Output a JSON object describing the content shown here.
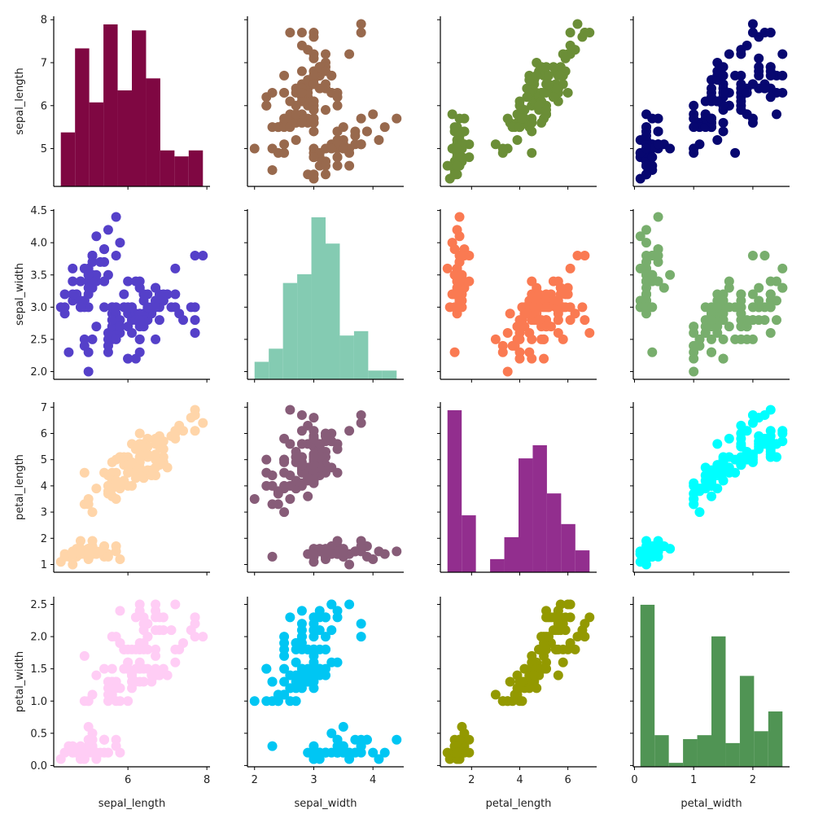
{
  "chart_data": {
    "type": "scatter",
    "title": "",
    "layout": "pairplot 4x4 (diagonal histograms, off-diagonal scatter)",
    "variables": [
      "sepal_length",
      "sepal_width",
      "petal_length",
      "petal_width"
    ],
    "axis_ranges": {
      "sepal_length": [
        4.12,
        8.08
      ],
      "sepal_width": [
        1.88,
        4.52
      ],
      "petal_length": [
        0.705,
        7.195
      ],
      "petal_width": [
        -0.02,
        2.62
      ]
    },
    "ticks": {
      "sepal_length": {
        "x": [
          "6",
          "8"
        ],
        "y": [
          "5",
          "6",
          "7",
          "8"
        ]
      },
      "sepal_width": {
        "x": [
          "2",
          "3",
          "4"
        ],
        "y": [
          "2.0",
          "2.5",
          "3.0",
          "3.5",
          "4.0",
          "4.5"
        ]
      },
      "petal_length": {
        "x": [
          "2",
          "4",
          "6"
        ],
        "y": [
          "1",
          "2",
          "3",
          "4",
          "5",
          "6",
          "7"
        ]
      },
      "petal_width": {
        "x": [
          "0",
          "1",
          "2"
        ],
        "y": [
          "0.0",
          "0.5",
          "1.0",
          "1.5",
          "2.0",
          "2.5"
        ]
      }
    },
    "grid": false,
    "legend": "none",
    "histograms": {
      "sepal_length": {
        "bins": 10,
        "range": [
          4.3,
          7.9
        ],
        "counts": [
          9,
          23,
          14,
          27,
          16,
          26,
          18,
          6,
          5,
          6
        ]
      },
      "sepal_width": {
        "bins": 10,
        "range": [
          2.0,
          4.4
        ],
        "counts": [
          4,
          7,
          22,
          24,
          37,
          31,
          10,
          11,
          2,
          2
        ]
      },
      "petal_length": {
        "bins": 10,
        "range": [
          1.0,
          6.9
        ],
        "counts": [
          37,
          13,
          0,
          3,
          8,
          26,
          29,
          18,
          11,
          5
        ]
      },
      "petal_width": {
        "bins": 10,
        "range": [
          0.1,
          2.5
        ],
        "counts": [
          41,
          8,
          1,
          7,
          8,
          33,
          6,
          23,
          9,
          14
        ]
      }
    },
    "panel_colors": [
      [
        "#7f0742",
        "#98694d",
        "#6b8e37",
        "#070770"
      ],
      [
        "#5540c9",
        "#84cbb2",
        "#fa7a52",
        "#78ae6d"
      ],
      [
        "#ffd5a9",
        "#875c78",
        "#922e8e",
        "#00ffff"
      ],
      [
        "#ffcdf5",
        "#00c6f3",
        "#939900",
        "#509454"
      ]
    ],
    "data": {
      "sepal_length": [
        5.1,
        4.9,
        4.7,
        4.6,
        5.0,
        5.4,
        4.6,
        5.0,
        4.4,
        4.9,
        5.4,
        4.8,
        4.8,
        4.3,
        5.8,
        5.7,
        5.4,
        5.1,
        5.7,
        5.1,
        5.4,
        5.1,
        4.6,
        5.1,
        4.8,
        5.0,
        5.0,
        5.2,
        5.2,
        4.7,
        4.8,
        5.4,
        5.2,
        5.5,
        4.9,
        5.0,
        5.5,
        4.9,
        4.4,
        5.1,
        5.0,
        4.5,
        4.4,
        5.0,
        5.1,
        4.8,
        5.1,
        4.6,
        5.3,
        5.0,
        7.0,
        6.4,
        6.9,
        5.5,
        6.5,
        5.7,
        6.3,
        4.9,
        6.6,
        5.2,
        5.0,
        5.9,
        6.0,
        6.1,
        5.6,
        6.7,
        5.6,
        5.8,
        6.2,
        5.6,
        5.9,
        6.1,
        6.3,
        6.1,
        6.4,
        6.6,
        6.8,
        6.7,
        6.0,
        5.7,
        5.5,
        5.5,
        5.8,
        6.0,
        5.4,
        6.0,
        6.7,
        6.3,
        5.6,
        5.5,
        5.5,
        6.1,
        5.8,
        5.0,
        5.6,
        5.7,
        5.7,
        6.2,
        5.1,
        5.7,
        6.3,
        5.8,
        7.1,
        6.3,
        6.5,
        7.6,
        4.9,
        7.3,
        6.7,
        7.2,
        6.5,
        6.4,
        6.8,
        5.7,
        5.8,
        6.4,
        6.5,
        7.7,
        7.7,
        6.0,
        6.9,
        5.6,
        7.7,
        6.3,
        6.7,
        7.2,
        6.2,
        6.1,
        6.4,
        7.2,
        7.4,
        7.9,
        6.4,
        6.3,
        6.1,
        7.7,
        6.3,
        6.4,
        6.0,
        6.9,
        6.7,
        6.9,
        5.8,
        6.8,
        6.7,
        6.7,
        6.3,
        6.5,
        6.2,
        5.9
      ],
      "sepal_width": [
        3.5,
        3.0,
        3.2,
        3.1,
        3.6,
        3.9,
        3.4,
        3.4,
        2.9,
        3.1,
        3.7,
        3.4,
        3.0,
        3.0,
        4.0,
        4.4,
        3.9,
        3.5,
        3.8,
        3.8,
        3.4,
        3.7,
        3.6,
        3.3,
        3.4,
        3.0,
        3.4,
        3.5,
        3.4,
        3.2,
        3.1,
        3.4,
        4.1,
        4.2,
        3.1,
        3.2,
        3.5,
        3.6,
        3.0,
        3.4,
        3.5,
        2.3,
        3.2,
        3.5,
        3.8,
        3.0,
        3.8,
        3.2,
        3.7,
        3.3,
        3.2,
        3.2,
        3.1,
        2.3,
        2.8,
        2.8,
        3.3,
        2.4,
        2.9,
        2.7,
        2.0,
        3.0,
        2.2,
        2.9,
        2.9,
        3.1,
        3.0,
        2.7,
        2.2,
        2.5,
        3.2,
        2.8,
        2.5,
        2.8,
        2.9,
        3.0,
        2.8,
        3.0,
        2.9,
        2.6,
        2.4,
        2.4,
        2.7,
        2.7,
        3.0,
        3.4,
        3.1,
        2.3,
        3.0,
        2.5,
        2.6,
        3.0,
        2.6,
        2.3,
        2.7,
        3.0,
        2.9,
        2.9,
        2.5,
        2.8,
        3.3,
        2.7,
        3.0,
        2.9,
        3.0,
        3.0,
        2.5,
        2.9,
        2.5,
        3.6,
        3.2,
        2.7,
        3.0,
        2.5,
        2.8,
        3.2,
        3.0,
        3.8,
        2.6,
        2.2,
        3.2,
        2.8,
        2.8,
        2.7,
        3.3,
        3.2,
        2.8,
        3.0,
        2.8,
        3.0,
        2.8,
        3.8,
        2.8,
        2.8,
        2.6,
        3.0,
        3.4,
        3.1,
        3.0,
        3.1,
        3.1,
        3.1,
        2.7,
        3.2,
        3.3,
        3.0,
        2.5,
        3.0,
        3.4,
        3.0
      ],
      "petal_length": [
        1.4,
        1.4,
        1.3,
        1.5,
        1.4,
        1.7,
        1.4,
        1.5,
        1.4,
        1.5,
        1.5,
        1.6,
        1.4,
        1.1,
        1.2,
        1.5,
        1.3,
        1.4,
        1.7,
        1.5,
        1.7,
        1.5,
        1.0,
        1.7,
        1.9,
        1.6,
        1.6,
        1.5,
        1.4,
        1.6,
        1.6,
        1.5,
        1.5,
        1.4,
        1.5,
        1.2,
        1.3,
        1.4,
        1.3,
        1.5,
        1.3,
        1.3,
        1.3,
        1.6,
        1.9,
        1.4,
        1.6,
        1.4,
        1.5,
        1.4,
        4.7,
        4.5,
        4.9,
        4.0,
        4.6,
        4.5,
        4.7,
        3.3,
        4.6,
        3.9,
        3.5,
        4.2,
        4.0,
        4.7,
        3.6,
        4.4,
        4.5,
        4.1,
        4.5,
        3.9,
        4.8,
        4.0,
        4.9,
        4.7,
        4.3,
        4.4,
        4.8,
        5.0,
        4.5,
        3.5,
        3.8,
        3.7,
        3.9,
        5.1,
        4.5,
        4.5,
        4.7,
        4.4,
        4.1,
        4.0,
        4.4,
        4.6,
        4.0,
        3.3,
        4.2,
        4.2,
        4.2,
        4.3,
        3.0,
        4.1,
        6.0,
        5.1,
        5.9,
        5.6,
        5.8,
        6.6,
        4.5,
        6.3,
        5.8,
        6.1,
        5.1,
        5.3,
        5.5,
        5.0,
        5.1,
        5.3,
        5.5,
        6.7,
        6.9,
        5.0,
        5.7,
        4.9,
        6.7,
        4.9,
        5.7,
        6.0,
        4.8,
        4.9,
        5.6,
        5.8,
        6.1,
        6.4,
        5.6,
        5.1,
        5.6,
        6.1,
        5.6,
        5.5,
        4.8,
        5.4,
        5.6,
        5.1,
        5.1,
        5.9,
        5.7,
        5.2,
        5.0,
        5.2,
        5.4,
        5.1
      ],
      "petal_width": [
        0.2,
        0.2,
        0.2,
        0.2,
        0.2,
        0.4,
        0.3,
        0.2,
        0.2,
        0.1,
        0.2,
        0.2,
        0.1,
        0.1,
        0.2,
        0.4,
        0.4,
        0.3,
        0.3,
        0.3,
        0.2,
        0.4,
        0.2,
        0.5,
        0.2,
        0.2,
        0.4,
        0.2,
        0.2,
        0.2,
        0.2,
        0.4,
        0.1,
        0.2,
        0.2,
        0.2,
        0.2,
        0.1,
        0.2,
        0.2,
        0.3,
        0.3,
        0.2,
        0.6,
        0.4,
        0.3,
        0.2,
        0.2,
        0.2,
        0.2,
        1.4,
        1.5,
        1.5,
        1.3,
        1.5,
        1.3,
        1.6,
        1.0,
        1.3,
        1.4,
        1.0,
        1.5,
        1.0,
        1.4,
        1.3,
        1.4,
        1.5,
        1.0,
        1.5,
        1.1,
        1.8,
        1.3,
        1.5,
        1.2,
        1.3,
        1.4,
        1.4,
        1.7,
        1.5,
        1.0,
        1.1,
        1.0,
        1.2,
        1.6,
        1.5,
        1.6,
        1.5,
        1.3,
        1.3,
        1.3,
        1.2,
        1.4,
        1.2,
        1.0,
        1.3,
        1.2,
        1.3,
        1.3,
        1.1,
        1.3,
        2.5,
        1.9,
        2.1,
        1.8,
        2.2,
        2.1,
        1.7,
        1.8,
        1.8,
        2.5,
        2.0,
        1.9,
        2.1,
        2.0,
        2.4,
        2.3,
        1.8,
        2.2,
        2.3,
        1.5,
        2.3,
        2.0,
        2.0,
        1.8,
        2.1,
        1.8,
        1.8,
        1.8,
        2.1,
        1.6,
        1.9,
        2.0,
        2.2,
        1.5,
        1.4,
        2.3,
        2.4,
        1.8,
        1.8,
        2.1,
        2.4,
        2.3,
        1.9,
        2.3,
        2.5,
        2.3,
        1.9,
        2.0,
        2.3,
        1.8
      ]
    }
  }
}
